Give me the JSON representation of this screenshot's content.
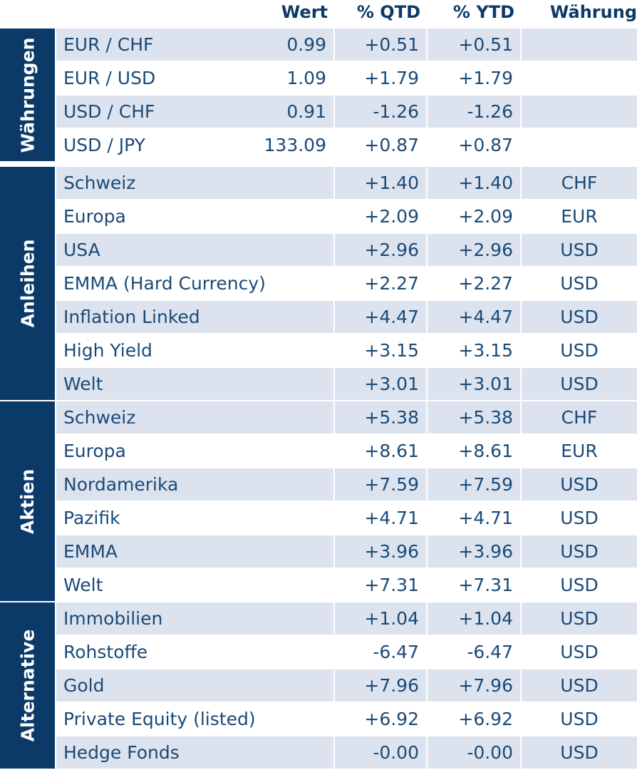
{
  "header": {
    "wert": "Wert",
    "qtd": "% QTD",
    "ytd": "% YTD",
    "currency": "Währung"
  },
  "groups": [
    {
      "label": "Währungen",
      "rows": [
        {
          "name": "EUR / CHF",
          "wert": "0.99",
          "qtd": "+0.51",
          "ytd": "+0.51",
          "cur": ""
        },
        {
          "name": "EUR / USD",
          "wert": "1.09",
          "qtd": "+1.79",
          "ytd": "+1.79",
          "cur": ""
        },
        {
          "name": "USD / CHF",
          "wert": "0.91",
          "qtd": "-1.26",
          "ytd": "-1.26",
          "cur": ""
        },
        {
          "name": "USD / JPY",
          "wert": "133.09",
          "qtd": "+0.87",
          "ytd": "+0.87",
          "cur": ""
        }
      ]
    },
    {
      "label": "Anleihen",
      "rows": [
        {
          "name": "Schweiz",
          "wert": "",
          "qtd": "+1.40",
          "ytd": "+1.40",
          "cur": "CHF"
        },
        {
          "name": "Europa",
          "wert": "",
          "qtd": "+2.09",
          "ytd": "+2.09",
          "cur": "EUR"
        },
        {
          "name": "USA",
          "wert": "",
          "qtd": "+2.96",
          "ytd": "+2.96",
          "cur": "USD"
        },
        {
          "name": "EMMA (Hard Currency)",
          "wert": "",
          "qtd": "+2.27",
          "ytd": "+2.27",
          "cur": "USD"
        },
        {
          "name": "Inflation Linked",
          "wert": "",
          "qtd": "+4.47",
          "ytd": "+4.47",
          "cur": "USD"
        },
        {
          "name": "High Yield",
          "wert": "",
          "qtd": "+3.15",
          "ytd": "+3.15",
          "cur": "USD"
        },
        {
          "name": "Welt",
          "wert": "",
          "qtd": "+3.01",
          "ytd": "+3.01",
          "cur": "USD"
        }
      ]
    },
    {
      "label": "Aktien",
      "rows": [
        {
          "name": "Schweiz",
          "wert": "",
          "qtd": "+5.38",
          "ytd": "+5.38",
          "cur": "CHF"
        },
        {
          "name": "Europa",
          "wert": "",
          "qtd": "+8.61",
          "ytd": "+8.61",
          "cur": "EUR"
        },
        {
          "name": "Nordamerika",
          "wert": "",
          "qtd": "+7.59",
          "ytd": "+7.59",
          "cur": "USD"
        },
        {
          "name": "Pazifik",
          "wert": "",
          "qtd": "+4.71",
          "ytd": "+4.71",
          "cur": "USD"
        },
        {
          "name": "EMMA",
          "wert": "",
          "qtd": "+3.96",
          "ytd": "+3.96",
          "cur": "USD"
        },
        {
          "name": "Welt",
          "wert": "",
          "qtd": "+7.31",
          "ytd": "+7.31",
          "cur": "USD"
        }
      ]
    },
    {
      "label": "Alternative",
      "rows": [
        {
          "name": "Immobilien",
          "wert": "",
          "qtd": "+1.04",
          "ytd": "+1.04",
          "cur": "USD"
        },
        {
          "name": "Rohstoffe",
          "wert": "",
          "qtd": "-6.47",
          "ytd": "-6.47",
          "cur": "USD"
        },
        {
          "name": "Gold",
          "wert": "",
          "qtd": "+7.96",
          "ytd": "+7.96",
          "cur": "USD"
        },
        {
          "name": "Private Equity (listed)",
          "wert": "",
          "qtd": "+6.92",
          "ytd": "+6.92",
          "cur": "USD"
        },
        {
          "name": "Hedge Fonds",
          "wert": "",
          "qtd": "-0.00",
          "ytd": "-0.00",
          "cur": "USD"
        }
      ]
    }
  ]
}
